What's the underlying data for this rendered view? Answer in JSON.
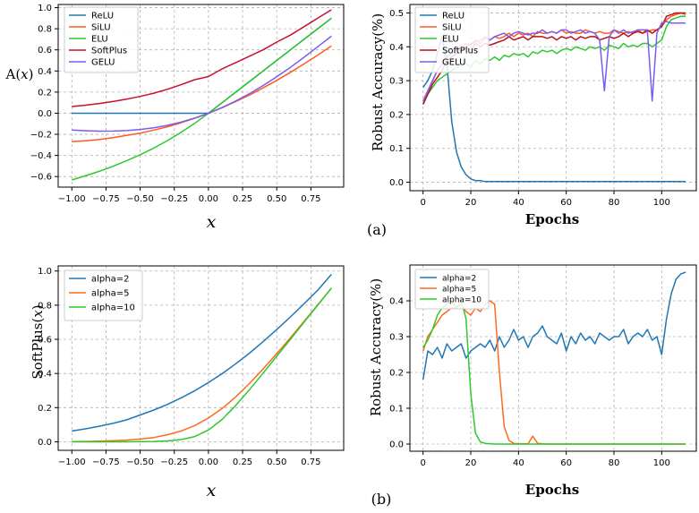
{
  "panel_labels": {
    "a": "(a)",
    "b": "(b)"
  },
  "chart_data": [
    {
      "id": "activations",
      "type": "line",
      "ylabel_parts": {
        "pre": "A(",
        "var": "x",
        "post": ")"
      },
      "xlabel": "x",
      "xlim": [
        -1.1,
        0.99
      ],
      "ylim": [
        -0.7,
        1.03
      ],
      "xticks": [
        -1.0,
        -0.75,
        -0.5,
        -0.25,
        0.0,
        0.25,
        0.5,
        0.75
      ],
      "xtick_labels": [
        "−1.00",
        "−0.75",
        "−0.50",
        "−0.25",
        "0.00",
        "0.25",
        "0.50",
        "0.75"
      ],
      "yticks": [
        -0.6,
        -0.4,
        -0.2,
        0.0,
        0.2,
        0.4,
        0.6,
        0.8,
        1.0
      ],
      "ytick_labels": [
        "−0.6",
        "−0.4",
        "−0.2",
        "0.0",
        "0.2",
        "0.4",
        "0.6",
        "0.8",
        "1.0"
      ],
      "grid": true,
      "legend": "top-left",
      "x": [
        -1.0,
        -0.9,
        -0.8,
        -0.7,
        -0.6,
        -0.5,
        -0.4,
        -0.3,
        -0.2,
        -0.1,
        0.0,
        0.1,
        0.2,
        0.3,
        0.4,
        0.5,
        0.6,
        0.7,
        0.8,
        0.9
      ],
      "series": [
        {
          "name": "ReLU",
          "color": "#1f77b4",
          "values": [
            0,
            0,
            0,
            0,
            0,
            0,
            0,
            0,
            0,
            0,
            0,
            0.1,
            0.2,
            0.3,
            0.4,
            0.5,
            0.6,
            0.7,
            0.8,
            0.9
          ]
        },
        {
          "name": "SiLU",
          "color": "#ff5a1f",
          "values": [
            -0.269,
            -0.261,
            -0.25,
            -0.232,
            -0.21,
            -0.189,
            -0.16,
            -0.128,
            -0.09,
            -0.048,
            0,
            0.052,
            0.11,
            0.172,
            0.24,
            0.311,
            0.387,
            0.467,
            0.55,
            0.637
          ]
        },
        {
          "name": "ELU",
          "color": "#2ec82e",
          "values": [
            -0.632,
            -0.593,
            -0.551,
            -0.503,
            -0.451,
            -0.393,
            -0.33,
            -0.259,
            -0.181,
            -0.095,
            0,
            0.1,
            0.2,
            0.3,
            0.4,
            0.5,
            0.6,
            0.7,
            0.8,
            0.9
          ]
        },
        {
          "name": "SoftPlus",
          "color": "#c8102e",
          "values": [
            0.063,
            0.076,
            0.092,
            0.111,
            0.133,
            0.159,
            0.19,
            0.227,
            0.27,
            0.318,
            0.347,
            0.42,
            0.48,
            0.54,
            0.6,
            0.674,
            0.74,
            0.82,
            0.9,
            0.98
          ]
        },
        {
          "name": "GELU",
          "color": "#7b5cf0",
          "values": [
            -0.159,
            -0.166,
            -0.17,
            -0.169,
            -0.165,
            -0.154,
            -0.138,
            -0.115,
            -0.084,
            -0.046,
            0,
            0.054,
            0.116,
            0.185,
            0.262,
            0.346,
            0.435,
            0.53,
            0.63,
            0.73
          ]
        }
      ]
    },
    {
      "id": "robust-activations",
      "type": "line",
      "ylabel": "Robust Accuracy(%)",
      "xlabel": "Epochs",
      "xlim": [
        -5.5,
        114.5
      ],
      "ylim": [
        -0.025,
        0.525
      ],
      "xticks": [
        0,
        20,
        40,
        60,
        80,
        100
      ],
      "xtick_labels": [
        "0",
        "20",
        "40",
        "60",
        "80",
        "100"
      ],
      "yticks": [
        0.0,
        0.1,
        0.2,
        0.3,
        0.4,
        0.5
      ],
      "ytick_labels": [
        "0.0",
        "0.1",
        "0.2",
        "0.3",
        "0.4",
        "0.5"
      ],
      "grid": true,
      "legend": "top-left",
      "x": [
        0,
        2,
        4,
        6,
        8,
        10,
        12,
        14,
        16,
        18,
        20,
        22,
        24,
        26,
        28,
        30,
        32,
        34,
        36,
        38,
        40,
        42,
        44,
        46,
        48,
        50,
        52,
        54,
        56,
        58,
        60,
        62,
        64,
        66,
        68,
        70,
        72,
        74,
        76,
        78,
        80,
        82,
        84,
        86,
        88,
        90,
        92,
        94,
        96,
        98,
        100,
        102,
        104,
        106,
        108,
        110
      ],
      "series": [
        {
          "name": "ReLU",
          "color": "#1f77b4",
          "values": [
            0.28,
            0.3,
            0.33,
            0.38,
            0.43,
            0.35,
            0.18,
            0.09,
            0.045,
            0.022,
            0.01,
            0.005,
            0.005,
            0.002,
            0.002,
            0.002,
            0.002,
            0.002,
            0.002,
            0.002,
            0.002,
            0.002,
            0.002,
            0.002,
            0.002,
            0.002,
            0.002,
            0.002,
            0.002,
            0.002,
            0.002,
            0.002,
            0.002,
            0.002,
            0.002,
            0.002,
            0.002,
            0.002,
            0.002,
            0.002,
            0.002,
            0.002,
            0.002,
            0.002,
            0.002,
            0.002,
            0.002,
            0.002,
            0.002,
            0.002,
            0.002,
            0.002,
            0.002,
            0.002,
            0.002,
            0.002
          ]
        },
        {
          "name": "SiLU",
          "color": "#ff5a1f",
          "values": [
            0.24,
            0.27,
            0.3,
            0.33,
            0.35,
            0.37,
            0.38,
            0.39,
            0.4,
            0.41,
            0.405,
            0.42,
            0.41,
            0.425,
            0.42,
            0.43,
            0.425,
            0.43,
            0.44,
            0.43,
            0.44,
            0.435,
            0.44,
            0.43,
            0.445,
            0.44,
            0.44,
            0.445,
            0.44,
            0.45,
            0.44,
            0.445,
            0.44,
            0.44,
            0.45,
            0.445,
            0.44,
            0.445,
            0.44,
            0.44,
            0.45,
            0.445,
            0.44,
            0.445,
            0.44,
            0.45,
            0.44,
            0.445,
            0.45,
            0.45,
            0.46,
            0.48,
            0.49,
            0.495,
            0.5,
            0.495
          ]
        },
        {
          "name": "ELU",
          "color": "#2ec82e",
          "values": [
            0.23,
            0.26,
            0.28,
            0.3,
            0.31,
            0.32,
            0.33,
            0.34,
            0.345,
            0.35,
            0.34,
            0.36,
            0.35,
            0.365,
            0.36,
            0.37,
            0.36,
            0.375,
            0.37,
            0.38,
            0.375,
            0.38,
            0.37,
            0.385,
            0.38,
            0.39,
            0.385,
            0.39,
            0.38,
            0.39,
            0.395,
            0.39,
            0.4,
            0.395,
            0.39,
            0.4,
            0.395,
            0.4,
            0.39,
            0.405,
            0.4,
            0.395,
            0.41,
            0.4,
            0.405,
            0.4,
            0.41,
            0.41,
            0.4,
            0.41,
            0.42,
            0.46,
            0.48,
            0.485,
            0.49,
            0.49
          ]
        },
        {
          "name": "SoftPlus",
          "color": "#b5121b",
          "values": [
            0.23,
            0.26,
            0.29,
            0.31,
            0.33,
            0.36,
            0.37,
            0.38,
            0.39,
            0.4,
            0.39,
            0.41,
            0.4,
            0.41,
            0.405,
            0.41,
            0.415,
            0.42,
            0.43,
            0.42,
            0.425,
            0.43,
            0.42,
            0.43,
            0.43,
            0.43,
            0.425,
            0.43,
            0.42,
            0.43,
            0.425,
            0.43,
            0.42,
            0.43,
            0.425,
            0.43,
            0.43,
            0.42,
            0.425,
            0.43,
            0.425,
            0.43,
            0.44,
            0.43,
            0.44,
            0.445,
            0.44,
            0.45,
            0.44,
            0.45,
            0.46,
            0.49,
            0.495,
            0.5,
            0.5,
            0.5
          ]
        },
        {
          "name": "GELU",
          "color": "#7b5cf0",
          "values": [
            0.24,
            0.27,
            0.3,
            0.33,
            0.35,
            0.37,
            0.38,
            0.39,
            0.395,
            0.4,
            0.41,
            0.415,
            0.42,
            0.43,
            0.42,
            0.43,
            0.435,
            0.44,
            0.43,
            0.44,
            0.445,
            0.44,
            0.435,
            0.44,
            0.44,
            0.45,
            0.44,
            0.445,
            0.44,
            0.45,
            0.45,
            0.44,
            0.445,
            0.45,
            0.44,
            0.445,
            0.44,
            0.42,
            0.27,
            0.43,
            0.45,
            0.44,
            0.45,
            0.44,
            0.445,
            0.45,
            0.45,
            0.45,
            0.24,
            0.44,
            0.47,
            0.475,
            0.47,
            0.47,
            0.47,
            0.47
          ]
        }
      ]
    },
    {
      "id": "softplus-alpha",
      "type": "line",
      "ylabel_parts": {
        "pre": "SoftPlus(",
        "var": "x",
        "post": ")"
      },
      "xlabel": "x",
      "xlim": [
        -1.1,
        0.99
      ],
      "ylim": [
        -0.05,
        1.03
      ],
      "xticks": [
        -1.0,
        -0.75,
        -0.5,
        -0.25,
        0.0,
        0.25,
        0.5,
        0.75
      ],
      "xtick_labels": [
        "−1.00",
        "−0.75",
        "−0.50",
        "−0.25",
        "0.00",
        "0.25",
        "0.50",
        "0.75"
      ],
      "yticks": [
        0.0,
        0.2,
        0.4,
        0.6,
        0.8,
        1.0
      ],
      "ytick_labels": [
        "0.0",
        "0.2",
        "0.4",
        "0.6",
        "0.8",
        "1.0"
      ],
      "grid": true,
      "legend": "top-left",
      "x": [
        -1.0,
        -0.9,
        -0.8,
        -0.7,
        -0.6,
        -0.5,
        -0.4,
        -0.3,
        -0.2,
        -0.1,
        0.0,
        0.1,
        0.2,
        0.3,
        0.4,
        0.5,
        0.6,
        0.7,
        0.8,
        0.9
      ],
      "series": [
        {
          "name": "alpha=2",
          "color": "#1f77b4",
          "values": [
            0.063,
            0.076,
            0.091,
            0.108,
            0.128,
            0.157,
            0.186,
            0.219,
            0.257,
            0.299,
            0.347,
            0.399,
            0.457,
            0.519,
            0.586,
            0.657,
            0.731,
            0.808,
            0.888,
            0.98
          ]
        },
        {
          "name": "alpha=5",
          "color": "#ff6a1f",
          "values": [
            0.001,
            0.002,
            0.004,
            0.006,
            0.01,
            0.016,
            0.025,
            0.041,
            0.063,
            0.095,
            0.139,
            0.195,
            0.263,
            0.341,
            0.426,
            0.516,
            0.609,
            0.705,
            0.802,
            0.9
          ]
        },
        {
          "name": "alpha=10",
          "color": "#2ec82e",
          "values": [
            0,
            0,
            0,
            0,
            0,
            0.001,
            0.002,
            0.005,
            0.013,
            0.031,
            0.069,
            0.131,
            0.213,
            0.305,
            0.402,
            0.501,
            0.6,
            0.7,
            0.8,
            0.9
          ]
        }
      ]
    },
    {
      "id": "robust-alpha",
      "type": "line",
      "ylabel": "Robust Accuracy(%)",
      "xlabel": "Epochs",
      "xlim": [
        -5.5,
        114.5
      ],
      "ylim": [
        -0.02,
        0.5
      ],
      "xticks": [
        0,
        20,
        40,
        60,
        80,
        100
      ],
      "xtick_labels": [
        "0",
        "20",
        "40",
        "60",
        "80",
        "100"
      ],
      "yticks": [
        0.0,
        0.1,
        0.2,
        0.3,
        0.4
      ],
      "ytick_labels": [
        "0.0",
        "0.1",
        "0.2",
        "0.3",
        "0.4"
      ],
      "grid": true,
      "legend": "top-left",
      "x": [
        0,
        2,
        4,
        6,
        8,
        10,
        12,
        14,
        16,
        18,
        20,
        22,
        24,
        26,
        28,
        30,
        32,
        34,
        36,
        38,
        40,
        42,
        44,
        46,
        48,
        50,
        52,
        54,
        56,
        58,
        60,
        62,
        64,
        66,
        68,
        70,
        72,
        74,
        76,
        78,
        80,
        82,
        84,
        86,
        88,
        90,
        92,
        94,
        96,
        98,
        100,
        102,
        104,
        106,
        108,
        110
      ],
      "series": [
        {
          "name": "alpha=2",
          "color": "#1f77b4",
          "values": [
            0.18,
            0.26,
            0.25,
            0.27,
            0.24,
            0.28,
            0.26,
            0.27,
            0.28,
            0.24,
            0.26,
            0.27,
            0.28,
            0.27,
            0.29,
            0.26,
            0.3,
            0.27,
            0.29,
            0.32,
            0.29,
            0.3,
            0.27,
            0.3,
            0.31,
            0.33,
            0.3,
            0.29,
            0.28,
            0.31,
            0.26,
            0.3,
            0.28,
            0.31,
            0.29,
            0.3,
            0.28,
            0.31,
            0.3,
            0.29,
            0.3,
            0.3,
            0.32,
            0.28,
            0.3,
            0.31,
            0.3,
            0.32,
            0.29,
            0.3,
            0.25,
            0.35,
            0.42,
            0.46,
            0.475,
            0.48
          ]
        },
        {
          "name": "alpha=5",
          "color": "#ff6a1f",
          "values": [
            0.26,
            0.3,
            0.32,
            0.34,
            0.36,
            0.37,
            0.38,
            0.38,
            0.39,
            0.37,
            0.36,
            0.38,
            0.37,
            0.39,
            0.4,
            0.39,
            0.2,
            0.05,
            0.01,
            0.002,
            0.001,
            0.001,
            0.001,
            0.022,
            0.002,
            0.001,
            0,
            0,
            0,
            0,
            0,
            0,
            0,
            0,
            0,
            0,
            0,
            0,
            0,
            0,
            0,
            0,
            0,
            0,
            0,
            0,
            0,
            0,
            0,
            0,
            0,
            0,
            0,
            0,
            0,
            0
          ]
        },
        {
          "name": "alpha=10",
          "color": "#2ec82e",
          "values": [
            0.27,
            0.29,
            0.32,
            0.36,
            0.38,
            0.39,
            0.4,
            0.38,
            0.4,
            0.35,
            0.14,
            0.03,
            0.006,
            0.002,
            0.001,
            0,
            0,
            0,
            0,
            0,
            0,
            0,
            0,
            0,
            0,
            0,
            0,
            0,
            0,
            0,
            0,
            0,
            0,
            0,
            0,
            0,
            0,
            0,
            0,
            0,
            0,
            0,
            0,
            0,
            0,
            0,
            0,
            0,
            0,
            0,
            0,
            0,
            0,
            0,
            0,
            0
          ]
        }
      ]
    }
  ]
}
